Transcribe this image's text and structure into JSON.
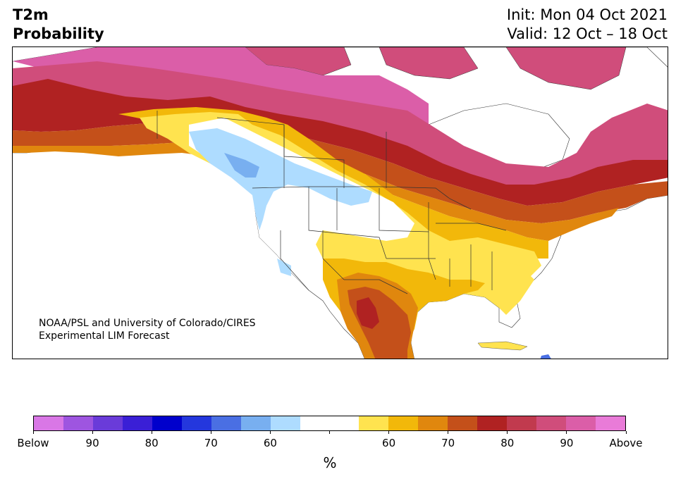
{
  "header": {
    "title_line1": "T2m",
    "title_line2": "Probability",
    "init": "Init: Mon 04 Oct 2021",
    "valid": "Valid: 12 Oct – 18 Oct"
  },
  "map": {
    "credit_line1": "NOAA/PSL and University of Colorado/CIRES",
    "credit_line2": "Experimental LIM Forecast"
  },
  "colorbar": {
    "unit": "%",
    "colors": [
      "#d977e6",
      "#9e55e0",
      "#6a3bd9",
      "#3a1fd6",
      "#0000cc",
      "#2437dd",
      "#4a6fe3",
      "#78aff0",
      "#aedcff",
      "#ffffff",
      "#ffffff",
      "#ffe34f",
      "#f2b80a",
      "#e0870e",
      "#c4501a",
      "#b02222",
      "#c13a4e",
      "#d04d7b",
      "#db5ea8",
      "#e97bd8"
    ],
    "labels": [
      "Below",
      "90",
      "80",
      "70",
      "60",
      "",
      "60",
      "70",
      "80",
      "90",
      "Above"
    ]
  }
}
